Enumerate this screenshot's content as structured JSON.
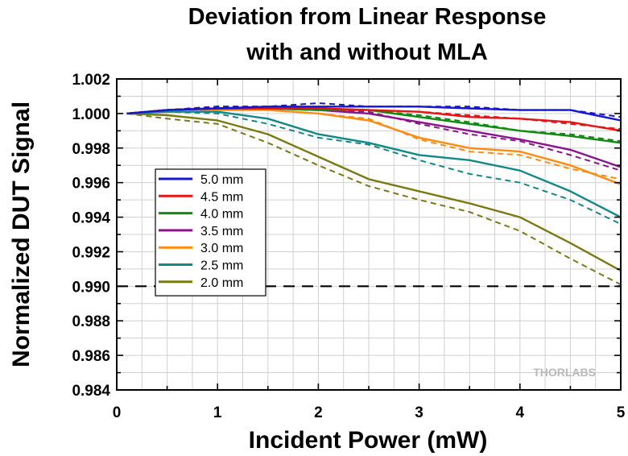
{
  "chart_data": {
    "type": "line",
    "title_lines": [
      "Deviation from Linear Response",
      "with and without MLA"
    ],
    "xlabel": "Incident Power (mW)",
    "ylabel": "Normalized DUT Signal",
    "xlim": [
      0,
      5
    ],
    "ylim": [
      0.984,
      1.002
    ],
    "x_ticks": [
      0,
      1,
      2,
      3,
      4,
      5
    ],
    "y_ticks": [
      0.984,
      0.986,
      0.988,
      0.99,
      0.992,
      0.994,
      0.996,
      0.998,
      1.0,
      1.002
    ],
    "y_tick_labels": [
      "0.984",
      "0.986",
      "0.988",
      "0.990",
      "0.992",
      "0.994",
      "0.996",
      "0.998",
      "1.000",
      "1.002"
    ],
    "grid": true,
    "legend_position": "center-left",
    "reference_line": {
      "y": 0.99,
      "style": "dashed",
      "color": "#000000"
    },
    "watermark": "THORLABS",
    "series": [
      {
        "name": "5.0 mm",
        "color": "#1515d4",
        "solid": {
          "x": [
            0.1,
            0.5,
            1.0,
            1.5,
            2.0,
            2.5,
            3.0,
            3.5,
            4.0,
            4.5,
            5.0
          ],
          "y": [
            1.0,
            1.0002,
            1.0003,
            1.0004,
            1.0004,
            1.0004,
            1.0004,
            1.0003,
            1.0002,
            1.0002,
            0.9996
          ]
        },
        "dashed": {
          "x": [
            0.1,
            0.5,
            1.0,
            1.5,
            2.0,
            2.5,
            3.0,
            3.5,
            4.0,
            4.5,
            5.0
          ],
          "y": [
            1.0,
            1.0002,
            1.0004,
            1.0004,
            1.0006,
            1.0004,
            1.0004,
            1.0004,
            1.0002,
            1.0002,
            0.9998
          ]
        }
      },
      {
        "name": "4.5 mm",
        "color": "#e51515",
        "solid": {
          "x": [
            0.1,
            0.5,
            1.0,
            1.5,
            2.0,
            2.5,
            3.0,
            3.5,
            4.0,
            4.5,
            5.0
          ],
          "y": [
            1.0,
            1.0002,
            1.0003,
            1.0003,
            1.0003,
            1.0002,
            1.0001,
            0.9998,
            0.9997,
            0.9995,
            0.999
          ]
        },
        "dashed": {
          "x": [
            0.1,
            0.5,
            1.0,
            1.5,
            2.0,
            2.5,
            3.0,
            3.5,
            4.0,
            4.5,
            5.0
          ],
          "y": [
            1.0,
            1.0002,
            1.0004,
            1.0004,
            1.0003,
            1.0002,
            1.0001,
            0.9999,
            0.9997,
            0.9994,
            0.9991
          ]
        }
      },
      {
        "name": "4.0 mm",
        "color": "#108a10",
        "solid": {
          "x": [
            0.1,
            0.5,
            1.0,
            1.5,
            2.0,
            2.5,
            3.0,
            3.5,
            4.0,
            4.5,
            5.0
          ],
          "y": [
            1.0,
            1.0002,
            1.0003,
            1.0003,
            1.0002,
            1.0002,
            0.9998,
            0.9994,
            0.999,
            0.9987,
            0.9983
          ]
        },
        "dashed": {
          "x": [
            0.1,
            0.5,
            1.0,
            1.5,
            2.0,
            2.5,
            3.0,
            3.5,
            4.0,
            4.5,
            5.0
          ],
          "y": [
            1.0,
            1.0002,
            1.0004,
            1.0003,
            1.0003,
            1.0002,
            0.9999,
            0.9995,
            0.999,
            0.9988,
            0.9984
          ]
        }
      },
      {
        "name": "3.5 mm",
        "color": "#8a158a",
        "solid": {
          "x": [
            0.1,
            0.5,
            1.0,
            1.5,
            2.0,
            2.5,
            3.0,
            3.5,
            4.0,
            4.5,
            5.0
          ],
          "y": [
            1.0,
            1.0002,
            1.0003,
            1.0003,
            1.0002,
            1.0,
            0.9995,
            0.999,
            0.9985,
            0.9979,
            0.9969
          ]
        },
        "dashed": {
          "x": [
            0.1,
            0.5,
            1.0,
            1.5,
            2.0,
            2.5,
            3.0,
            3.5,
            4.0,
            4.5,
            5.0
          ],
          "y": [
            1.0,
            1.0002,
            1.0004,
            1.0003,
            1.0002,
            1.0001,
            0.9994,
            0.9988,
            0.9984,
            0.9976,
            0.9967
          ]
        }
      },
      {
        "name": "3.0 mm",
        "color": "#ff8c10",
        "solid": {
          "x": [
            0.1,
            0.5,
            1.0,
            1.5,
            2.0,
            2.5,
            3.0,
            3.5,
            4.0,
            4.5,
            5.0
          ],
          "y": [
            1.0,
            1.0002,
            1.0002,
            1.0002,
            1.0,
            0.9996,
            0.9986,
            0.998,
            0.9978,
            0.997,
            0.9959
          ]
        },
        "dashed": {
          "x": [
            0.1,
            0.5,
            1.0,
            1.5,
            2.0,
            2.5,
            3.0,
            3.5,
            4.0,
            4.5,
            5.0
          ],
          "y": [
            1.0,
            1.0002,
            1.0003,
            1.0002,
            1.0,
            0.9997,
            0.9985,
            0.9978,
            0.9976,
            0.9968,
            0.9962
          ]
        }
      },
      {
        "name": "2.5 mm",
        "color": "#128888",
        "solid": {
          "x": [
            0.1,
            0.5,
            1.0,
            1.5,
            2.0,
            2.5,
            3.0,
            3.5,
            4.0,
            4.5,
            5.0
          ],
          "y": [
            1.0,
            1.0001,
            1.0001,
            0.9997,
            0.9988,
            0.9983,
            0.9976,
            0.9973,
            0.9967,
            0.9955,
            0.994
          ]
        },
        "dashed": {
          "x": [
            0.1,
            0.5,
            1.0,
            1.5,
            2.0,
            2.5,
            3.0,
            3.5,
            4.0,
            4.5,
            5.0
          ],
          "y": [
            1.0,
            1.0001,
            1.0,
            0.9994,
            0.9986,
            0.9982,
            0.9973,
            0.9965,
            0.996,
            0.995,
            0.9936
          ]
        }
      },
      {
        "name": "2.0 mm",
        "color": "#7a7a12",
        "solid": {
          "x": [
            0.1,
            0.5,
            1.0,
            1.5,
            2.0,
            2.5,
            3.0,
            3.5,
            4.0,
            4.5,
            5.0
          ],
          "y": [
            1.0,
            0.9999,
            0.9996,
            0.9988,
            0.9975,
            0.9962,
            0.9955,
            0.9948,
            0.994,
            0.9925,
            0.9909
          ]
        },
        "dashed": {
          "x": [
            0.1,
            0.5,
            1.0,
            1.5,
            2.0,
            2.5,
            3.0,
            3.5,
            4.0,
            4.5,
            5.0
          ],
          "y": [
            1.0,
            0.9997,
            0.9994,
            0.9983,
            0.997,
            0.9958,
            0.995,
            0.9943,
            0.9932,
            0.9916,
            0.9901
          ]
        }
      }
    ]
  }
}
